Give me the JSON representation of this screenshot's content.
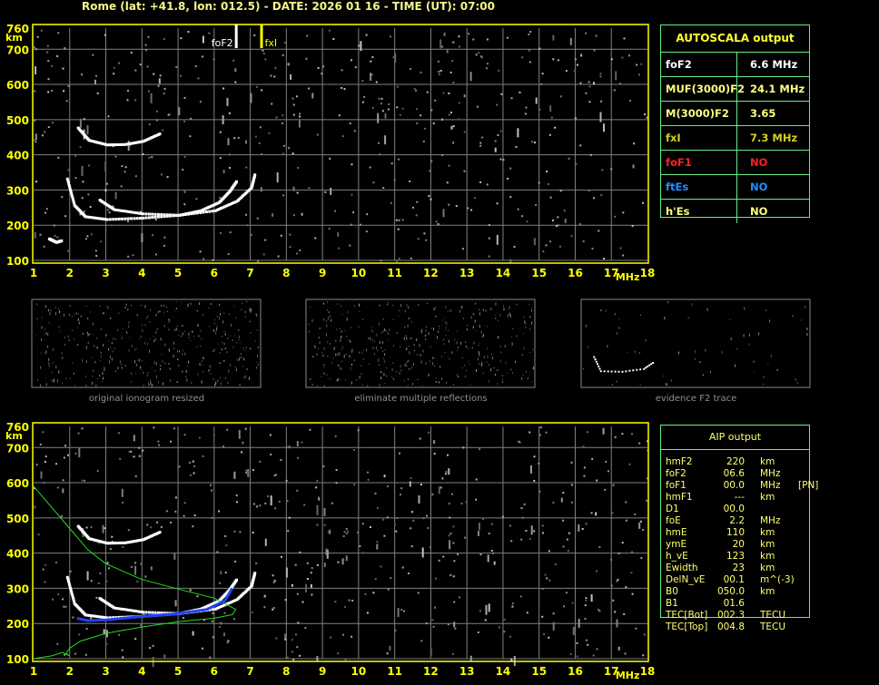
{
  "header": {
    "title": "Rome (lat: +41.8, lon: 012.5) - DATE: 2026 01 16 - TIME (UT): 07:00"
  },
  "colors": {
    "axis": "#ffff00",
    "grid": "#808080",
    "table_border": "#66ee88",
    "foF2": "#ffffff",
    "fxI": "#ffff00",
    "foF1": "#ff2020",
    "ftEs": "#1e8fff",
    "profile": "#22dd22",
    "trace_fit": "#2040ff"
  },
  "autoscala": {
    "title": "AUTOSCALA output",
    "rows": [
      {
        "label": "foF2",
        "value": "6.6 MHz",
        "color": "#ffffff"
      },
      {
        "label": "MUF(3000)F2",
        "value": "24.1 MHz",
        "color": "#ffff80"
      },
      {
        "label": "M(3000)F2",
        "value": "3.65",
        "color": "#ffff80"
      },
      {
        "label": "fxI",
        "value": "7.3 MHz",
        "color": "#d0d020"
      },
      {
        "label": "foF1",
        "value": "NO",
        "color": "#ff2020"
      },
      {
        "label": "ftEs",
        "value": "NO",
        "color": "#1e8fff"
      },
      {
        "label": "h'Es",
        "value": "NO",
        "color": "#ffff80"
      }
    ]
  },
  "aip": {
    "title": "AIP output",
    "rows": [
      [
        "hmF2",
        "220",
        "km",
        ""
      ],
      [
        "foF2",
        "06.6",
        "MHz",
        ""
      ],
      [
        "foF1",
        "00.0",
        "MHz",
        "[PN]"
      ],
      [
        "hmF1",
        "---",
        "km",
        ""
      ],
      [
        "D1",
        "00.0",
        "",
        ""
      ],
      [
        "foE",
        "2.2",
        "MHz",
        ""
      ],
      [
        "hmE",
        "110",
        "km",
        ""
      ],
      [
        "ymE",
        "20",
        "km",
        ""
      ],
      [
        "h_vE",
        "123",
        "km",
        ""
      ],
      [
        "Ewidth",
        "23",
        "km",
        ""
      ],
      [
        "DelN_vE",
        "00.1",
        "m^(-3)",
        ""
      ],
      [
        "B0",
        "050.0",
        "km",
        ""
      ],
      [
        "B1",
        "01.6",
        "",
        ""
      ],
      [
        "TEC[Bot]",
        "002.3",
        "TECU",
        ""
      ],
      [
        "TEC[Top]",
        "004.8",
        "TECU",
        ""
      ]
    ]
  },
  "thumbnails": [
    {
      "caption": "original ionogram resized"
    },
    {
      "caption": "eliminate multiple reflections"
    },
    {
      "caption": "evidence F2 trace"
    }
  ],
  "chart_data": [
    {
      "type": "scatter",
      "xlim": [
        1,
        18
      ],
      "ylim": [
        100,
        760
      ],
      "x_ticks": [
        "1",
        "2",
        "3",
        "4",
        "5",
        "6",
        "7",
        "8",
        "9",
        "10",
        "11",
        "12",
        "13",
        "14",
        "15",
        "16",
        "17",
        "18"
      ],
      "x_unit": "MHz",
      "y_ticks": [
        "100",
        "200",
        "300",
        "400",
        "500",
        "600",
        "700",
        "760"
      ],
      "y_unit": "km",
      "grid": true,
      "markers": [
        {
          "label": "foF2",
          "x": 6.6
        },
        {
          "label": "fxI",
          "x": 7.3
        }
      ],
      "traces": [
        {
          "points": [
            [
              1.9,
              335
            ],
            [
              2.1,
              260
            ],
            [
              2.4,
              228
            ],
            [
              3,
              220
            ],
            [
              4,
              224
            ],
            [
              5,
              232
            ],
            [
              5.6,
              245
            ],
            [
              6.1,
              268
            ],
            [
              6.4,
              300
            ],
            [
              6.6,
              330
            ]
          ]
        },
        {
          "points": [
            [
              2.8,
              275
            ],
            [
              3.2,
              248
            ],
            [
              4,
              236
            ],
            [
              5,
              232
            ],
            [
              6,
              245
            ],
            [
              6.6,
              272
            ],
            [
              7,
              310
            ],
            [
              7.1,
              350
            ]
          ]
        },
        {
          "points": [
            [
              2.2,
              480
            ],
            [
              2.5,
              445
            ],
            [
              3,
              432
            ],
            [
              3.5,
              433
            ],
            [
              4,
              442
            ],
            [
              4.5,
              465
            ]
          ]
        },
        {
          "points": [
            [
              1.4,
              165
            ],
            [
              1.6,
              155
            ],
            [
              1.75,
              160
            ]
          ]
        }
      ]
    },
    {
      "type": "line",
      "xlim": [
        1,
        18
      ],
      "ylim": [
        100,
        760
      ],
      "x_ticks": [
        "1",
        "2",
        "3",
        "4",
        "5",
        "6",
        "7",
        "8",
        "9",
        "10",
        "11",
        "12",
        "13",
        "14",
        "15",
        "16",
        "17",
        "18"
      ],
      "x_unit": "MHz",
      "y_ticks": [
        "100",
        "200",
        "300",
        "400",
        "500",
        "600",
        "700",
        "760"
      ],
      "y_unit": "km",
      "grid": true,
      "traces": [
        {
          "points": [
            [
              1.9,
              335
            ],
            [
              2.1,
              260
            ],
            [
              2.4,
              228
            ],
            [
              3,
              220
            ],
            [
              4,
              224
            ],
            [
              5,
              232
            ],
            [
              5.6,
              245
            ],
            [
              6.1,
              268
            ],
            [
              6.4,
              300
            ],
            [
              6.6,
              330
            ]
          ]
        },
        {
          "points": [
            [
              2.8,
              275
            ],
            [
              3.2,
              248
            ],
            [
              4,
              236
            ],
            [
              5,
              232
            ],
            [
              6,
              245
            ],
            [
              6.6,
              272
            ],
            [
              7,
              310
            ],
            [
              7.1,
              350
            ]
          ]
        },
        {
          "points": [
            [
              2.2,
              480
            ],
            [
              2.5,
              445
            ],
            [
              3,
              432
            ],
            [
              3.5,
              433
            ],
            [
              4,
              442
            ],
            [
              4.5,
              465
            ]
          ]
        }
      ],
      "fitted_trace": [
        [
          2.2,
          215
        ],
        [
          2.5,
          208
        ],
        [
          3,
          210
        ],
        [
          4,
          220
        ],
        [
          5,
          228
        ],
        [
          5.8,
          240
        ],
        [
          6.3,
          265
        ],
        [
          6.5,
          300
        ]
      ],
      "profile": [
        [
          1,
          590
        ],
        [
          1.5,
          530
        ],
        [
          2,
          470
        ],
        [
          2.5,
          410
        ],
        [
          3,
          370
        ],
        [
          4,
          325
        ],
        [
          5,
          298
        ],
        [
          6,
          272
        ],
        [
          6.6,
          240
        ],
        [
          6.5,
          225
        ],
        [
          6,
          215
        ],
        [
          5,
          205
        ],
        [
          4,
          190
        ],
        [
          3,
          172
        ],
        [
          2.3,
          150
        ],
        [
          2,
          130
        ],
        [
          1.9,
          115
        ],
        [
          2,
          108
        ],
        [
          1.8,
          118
        ],
        [
          1.5,
          108
        ],
        [
          1.2,
          103
        ],
        [
          1,
          100
        ]
      ]
    }
  ]
}
